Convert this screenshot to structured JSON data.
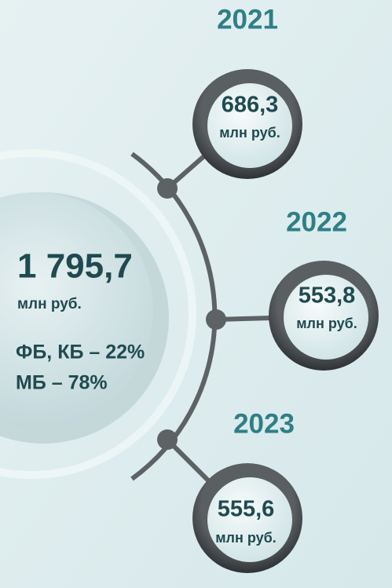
{
  "total": {
    "value": "1 795,7",
    "unit": "млн руб.",
    "shares": [
      "ФБ, КБ – 22%",
      "МБ – 78%"
    ]
  },
  "years": [
    {
      "year": "2021",
      "value": "686,3",
      "unit": "млн руб."
    },
    {
      "year": "2022",
      "value": "553,8",
      "unit": "млн руб."
    },
    {
      "year": "2023",
      "value": "555,6",
      "unit": "млн руб."
    }
  ]
}
